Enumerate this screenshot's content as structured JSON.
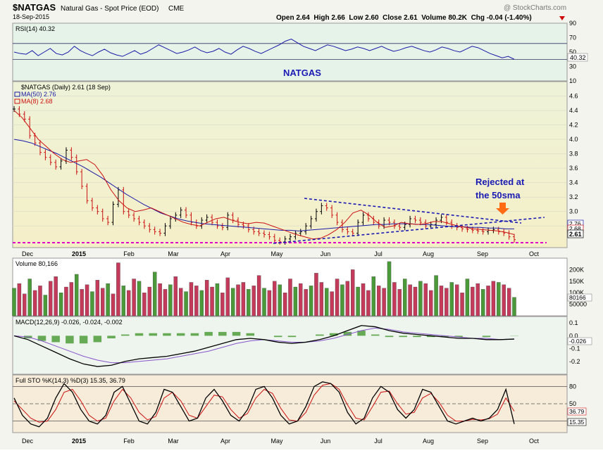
{
  "header": {
    "symbol": "$NATGAS",
    "name": "Natural Gas - Spot Price (EOD)",
    "exchange": "CME",
    "date": "18-Sep-2015",
    "ohlc": "Open 2.64  High 2.66  Low 2.60  Close 2.61  Volume 80.2K  Chg -0.04 (-1.40%)",
    "watermark": "@ StockCharts.com",
    "chart_title": "NATGAS"
  },
  "chart_data": [
    {
      "panel": "rsi",
      "type": "line",
      "label": "RSI(14) 40.32",
      "value": 40.32,
      "ylim": [
        10,
        90
      ],
      "ticks": [
        90,
        70,
        50,
        30,
        10
      ],
      "levels": [
        70,
        30
      ],
      "values": [
        50,
        48,
        47,
        52,
        45,
        50,
        55,
        48,
        46,
        50,
        58,
        52,
        48,
        45,
        50,
        54,
        49,
        46,
        44,
        48,
        52,
        47,
        50,
        55,
        60,
        56,
        52,
        48,
        50,
        53,
        57,
        52,
        49,
        51,
        55,
        50,
        47,
        53,
        58,
        55,
        51,
        48,
        52,
        56,
        60,
        65,
        68,
        63,
        58,
        55,
        52,
        56,
        60,
        58,
        55,
        52,
        54,
        57,
        55,
        52,
        55,
        58,
        54,
        51,
        53,
        56,
        58,
        55,
        52,
        50,
        53,
        57,
        55,
        52,
        50,
        54,
        58,
        56,
        52,
        48,
        45,
        42,
        44,
        40
      ]
    },
    {
      "panel": "price",
      "type": "line",
      "series": [
        {
          "name": "$NATGAS (Daily) 2.61 (18 Sep)",
          "color": "#000000"
        },
        {
          "name": "MA(50) 2.76",
          "color": "#1a1aa8"
        },
        {
          "name": "MA(8) 2.68",
          "color": "#cc1111"
        }
      ],
      "ylim": [
        2.5,
        4.8
      ],
      "ticks": [
        4.6,
        4.4,
        4.2,
        4.0,
        3.8,
        3.6,
        3.4,
        3.2,
        3.0,
        2.8
      ],
      "xticks": [
        "Dec",
        "2015",
        "Feb",
        "Mar",
        "Apr",
        "May",
        "Jun",
        "Jul",
        "Aug",
        "Sep",
        "Oct"
      ],
      "price_labels": [
        "2.76",
        "2.68",
        "2.61"
      ],
      "close": [
        4.42,
        4.35,
        4.28,
        4.05,
        3.95,
        3.82,
        3.75,
        3.68,
        3.62,
        3.7,
        3.85,
        3.75,
        3.55,
        3.35,
        3.15,
        3.05,
        3.0,
        2.9,
        2.85,
        3.1,
        3.3,
        3.0,
        2.95,
        2.9,
        2.85,
        2.8,
        2.75,
        2.72,
        2.7,
        2.8,
        2.9,
        2.95,
        3.02,
        2.95,
        2.85,
        2.8,
        2.88,
        2.92,
        2.85,
        2.8,
        2.78,
        2.95,
        2.88,
        2.82,
        2.8,
        2.75,
        2.72,
        2.7,
        2.68,
        2.65,
        2.6,
        2.58,
        2.62,
        2.65,
        2.7,
        2.72,
        2.8,
        2.9,
        3.0,
        3.08,
        3.05,
        2.95,
        2.85,
        2.75,
        2.72,
        2.7,
        2.85,
        2.95,
        2.9,
        2.85,
        2.8,
        2.88,
        2.85,
        2.8,
        2.78,
        2.82,
        2.9,
        2.88,
        2.85,
        2.8,
        2.82,
        2.88,
        2.92,
        2.85,
        2.8,
        2.78,
        2.76,
        2.75,
        2.74,
        2.73,
        2.72,
        2.74,
        2.75,
        2.72,
        2.7,
        2.65,
        2.61
      ],
      "ma50": [
        4.0,
        3.98,
        3.95,
        3.9,
        3.85,
        3.8,
        3.74,
        3.68,
        3.62,
        3.55,
        3.48,
        3.4,
        3.32,
        3.24,
        3.17,
        3.1,
        3.04,
        2.98,
        2.94,
        2.9,
        2.87,
        2.85,
        2.83,
        2.82,
        2.81,
        2.8,
        2.79,
        2.78,
        2.77,
        2.76,
        2.75,
        2.74,
        2.74,
        2.73,
        2.74,
        2.75,
        2.76,
        2.77,
        2.78,
        2.79,
        2.8,
        2.81,
        2.82,
        2.82,
        2.83,
        2.83,
        2.83,
        2.82,
        2.82,
        2.81,
        2.8,
        2.79,
        2.79,
        2.78,
        2.78,
        2.77,
        2.77,
        2.76,
        2.76
      ],
      "ma8": [
        4.4,
        4.3,
        4.15,
        4.0,
        3.9,
        3.8,
        3.72,
        3.68,
        3.7,
        3.72,
        3.65,
        3.5,
        3.3,
        3.15,
        3.05,
        3.0,
        3.02,
        3.05,
        3.0,
        2.95,
        2.9,
        2.85,
        2.82,
        2.8,
        2.85,
        2.9,
        2.92,
        2.88,
        2.85,
        2.83,
        2.85,
        2.84,
        2.8,
        2.76,
        2.72,
        2.68,
        2.65,
        2.62,
        2.63,
        2.68,
        2.75,
        2.85,
        2.98,
        3.02,
        2.95,
        2.85,
        2.78,
        2.8,
        2.85,
        2.83,
        2.82,
        2.83,
        2.86,
        2.86,
        2.83,
        2.8,
        2.78,
        2.76,
        2.75,
        2.74,
        2.73,
        2.71,
        2.68
      ]
    },
    {
      "panel": "volume",
      "type": "bar",
      "label": "Volume 80,166",
      "value": 80166,
      "ylim": [
        0,
        250000
      ],
      "ticks": [
        "200K",
        "150K",
        "100K",
        "50000"
      ],
      "value_label": "80166",
      "values": [
        120000,
        140000,
        95000,
        160000,
        110000,
        130000,
        90000,
        150000,
        170000,
        100000,
        125000,
        145000,
        180000,
        115000,
        135000,
        105000,
        155000,
        120000,
        140000,
        95000,
        230000,
        130000,
        110000,
        160000,
        150000,
        100000,
        125000,
        190000,
        140000,
        115000,
        135000,
        170000,
        120000,
        105000,
        145000,
        130000,
        110000,
        155000,
        125000,
        140000,
        100000,
        165000,
        120000,
        135000,
        145000,
        115000,
        130000,
        175000,
        120000,
        110000,
        150000,
        135000,
        100000,
        160000,
        125000,
        140000,
        115000,
        130000,
        185000,
        145000,
        120000,
        105000,
        160000,
        135000,
        150000,
        200000,
        125000,
        140000,
        110000,
        170000,
        130000,
        120000,
        235000,
        145000,
        115000,
        160000,
        135000,
        125000,
        150000,
        140000,
        110000,
        175000,
        130000,
        120000,
        145000,
        135000,
        100000,
        160000,
        125000,
        140000,
        115000,
        130000,
        150000,
        145000,
        135000,
        120000,
        80166
      ]
    },
    {
      "panel": "macd",
      "type": "line",
      "label": "MACD(12,26,9) -0.026, -0.024, -0.002",
      "ylim": [
        -0.3,
        0.15
      ],
      "ticks": [
        "0.1",
        "0.0",
        "-0.1",
        "-0.2"
      ],
      "value_label": "-0.026",
      "series": [
        {
          "name": "MACD(12,26,9)",
          "color": "#000000",
          "values": [
            0.0,
            -0.03,
            -0.08,
            -0.13,
            -0.18,
            -0.22,
            -0.24,
            -0.23,
            -0.2,
            -0.18,
            -0.17,
            -0.16,
            -0.14,
            -0.12,
            -0.09,
            -0.06,
            -0.03,
            -0.02,
            -0.03,
            -0.05,
            -0.06,
            -0.05,
            -0.03,
            0.0,
            0.04,
            0.08,
            0.07,
            0.04,
            0.02,
            0.01,
            0.0,
            -0.01,
            -0.02,
            -0.02,
            -0.03,
            -0.03,
            -0.026
          ]
        },
        {
          "name": "Signal",
          "color": "#8855cc",
          "values": [
            0.0,
            -0.01,
            -0.04,
            -0.08,
            -0.12,
            -0.16,
            -0.19,
            -0.21,
            -0.21,
            -0.2,
            -0.19,
            -0.18,
            -0.16,
            -0.14,
            -0.12,
            -0.09,
            -0.06,
            -0.04,
            -0.03,
            -0.04,
            -0.05,
            -0.05,
            -0.04,
            -0.02,
            0.01,
            0.04,
            0.06,
            0.05,
            0.03,
            0.02,
            0.01,
            0.0,
            -0.01,
            -0.02,
            -0.02,
            -0.03,
            -0.024
          ]
        }
      ]
    },
    {
      "panel": "sto",
      "type": "line",
      "label": "Full STO %K(14,3) %D(3) 15.35, 36.79",
      "ylim": [
        0,
        100
      ],
      "ticks": [
        80,
        50
      ],
      "levels": [
        80,
        50,
        20
      ],
      "value_labels": [
        "36.79",
        "15.35"
      ],
      "series": [
        {
          "name": "%K(14,3)",
          "color": "#000000",
          "values": [
            60,
            30,
            15,
            10,
            25,
            60,
            85,
            70,
            40,
            20,
            15,
            30,
            70,
            80,
            50,
            20,
            15,
            35,
            75,
            70,
            45,
            20,
            25,
            60,
            75,
            55,
            30,
            20,
            40,
            75,
            80,
            60,
            30,
            15,
            20,
            45,
            80,
            88,
            85,
            70,
            35,
            15,
            25,
            60,
            80,
            70,
            40,
            25,
            40,
            75,
            70,
            45,
            20,
            15,
            20,
            25,
            20,
            25,
            40,
            75,
            15
          ]
        },
        {
          "name": "%D(3)",
          "color": "#cc1111",
          "values": [
            55,
            40,
            25,
            18,
            20,
            40,
            70,
            75,
            55,
            30,
            20,
            25,
            55,
            75,
            60,
            35,
            22,
            28,
            60,
            70,
            55,
            30,
            25,
            45,
            65,
            62,
            40,
            25,
            33,
            60,
            75,
            68,
            42,
            22,
            20,
            35,
            65,
            82,
            85,
            75,
            48,
            25,
            22,
            45,
            70,
            72,
            50,
            32,
            35,
            60,
            68,
            52,
            30,
            20,
            20,
            23,
            22,
            24,
            32,
            60,
            37
          ]
        }
      ]
    }
  ],
  "annotations": {
    "rejected_line1": "Rejected at",
    "rejected_line2": "the 50sma"
  }
}
